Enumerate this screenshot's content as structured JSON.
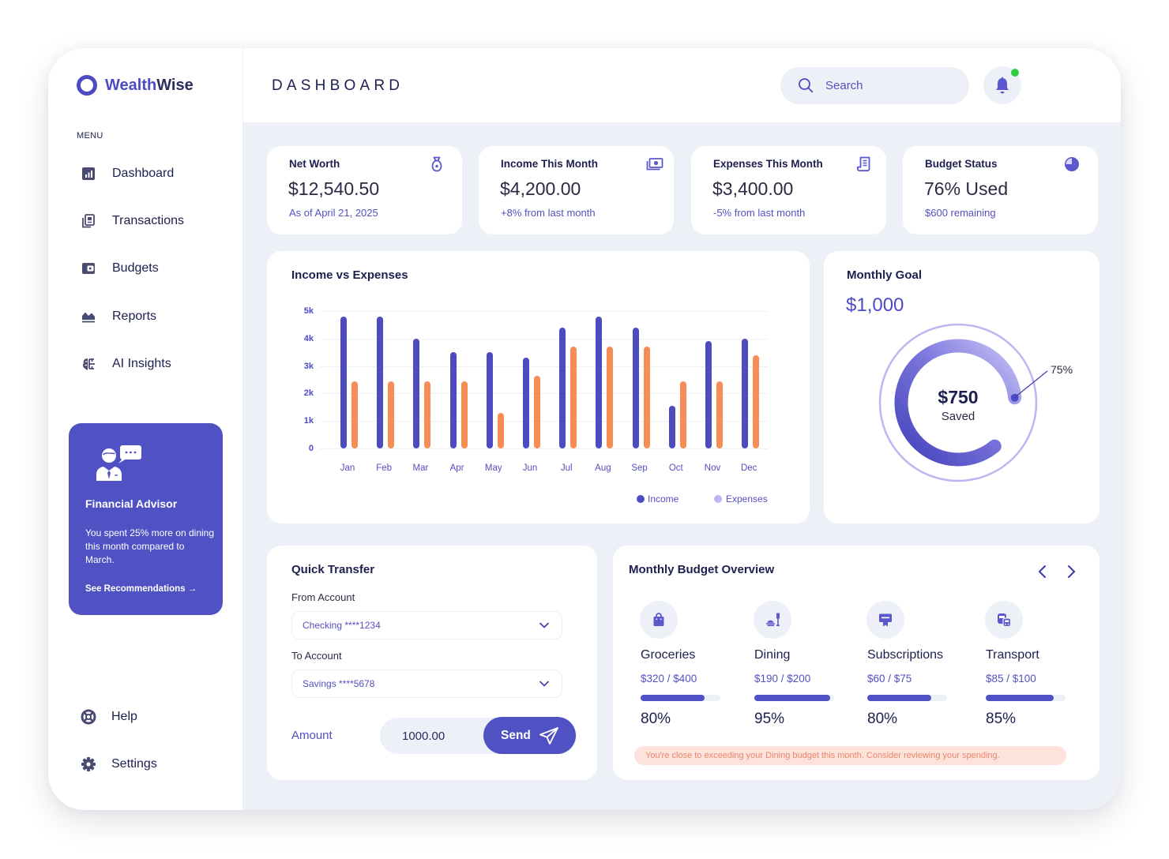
{
  "brand": {
    "name_part1": "Wealth",
    "name_part2": "Wise"
  },
  "sidebar": {
    "menu_label": "MENU",
    "items": [
      {
        "label": "Dashboard",
        "icon": "dashboard-icon"
      },
      {
        "label": "Transactions",
        "icon": "transactions-icon"
      },
      {
        "label": "Budgets",
        "icon": "wallet-icon"
      },
      {
        "label": "Reports",
        "icon": "reports-icon"
      },
      {
        "label": "AI Insights",
        "icon": "brain-icon"
      }
    ],
    "advisor": {
      "title": "Financial Advisor",
      "text": "You spent 25% more on dining this month compared to March.",
      "link": "See Recommendations →",
      "icon": "advisor-icon"
    },
    "footer_items": [
      {
        "label": "Help",
        "icon": "lifebuoy-icon"
      },
      {
        "label": "Settings",
        "icon": "gear-icon"
      }
    ]
  },
  "header": {
    "title": "DASHBOARD",
    "search_placeholder": "Search",
    "notification_dot_color": "#2ecc40"
  },
  "stats": [
    {
      "label": "Net Worth",
      "value": "$12,540.50",
      "sub": "As of April 21, 2025",
      "icon": "money-bag-icon"
    },
    {
      "label": "Income This Month",
      "value": "$4,200.00",
      "sub": "+8% from last month",
      "icon": "banknote-icon"
    },
    {
      "label": "Expenses This Month",
      "value": "$3,400.00",
      "sub": "-5% from last month",
      "icon": "receipt-icon"
    },
    {
      "label": "Budget Status",
      "value": "76% Used",
      "sub": "$600 remaining",
      "icon": "pie-chart-icon"
    }
  ],
  "income_chart": {
    "title": "Income vs Expenses",
    "legend": [
      {
        "label": "Income",
        "color": "#4d4bc0"
      },
      {
        "label": "Expenses",
        "color": "#b9b6f2"
      }
    ]
  },
  "monthly_goal": {
    "title": "Monthly Goal",
    "goal": "$1,000",
    "saved_amount": "$750",
    "saved_label": "Saved",
    "percent_label": "75%"
  },
  "quick_transfer": {
    "title": "Quick Transfer",
    "from_label": "From Account",
    "from_value": "Checking ****1234",
    "to_label": "To Account",
    "to_value": "Savings ****5678",
    "amount_label": "Amount",
    "amount_value": "1000.00",
    "send_label": "Send"
  },
  "budget_overview": {
    "title": "Monthly Budget Overview",
    "categories": [
      {
        "name": "Groceries",
        "amount": "$320 / $400",
        "percent": "80%",
        "progress": 80,
        "icon": "shopping-bag-icon"
      },
      {
        "name": "Dining",
        "amount": "$190 / $200",
        "percent": "95%",
        "progress": 95,
        "icon": "dining-icon"
      },
      {
        "name": "Subscriptions",
        "amount": "$60 / $75",
        "percent": "80%",
        "progress": 80,
        "icon": "subscription-icon"
      },
      {
        "name": "Transport",
        "amount": "$85 / $100",
        "percent": "85%",
        "progress": 85,
        "icon": "transport-icon"
      }
    ],
    "alert": "You're close to exceeding your Dining budget this month. Consider reviewing your spending."
  },
  "colors": {
    "primary": "#5052c4",
    "income": "#4d4bc0",
    "expenses": "#f58d55",
    "background": "#eef0f8",
    "text_dark": "#1d1f4f",
    "text_accent": "#5550c0",
    "alert_bg": "#fde3dc",
    "alert_text": "#e8876a"
  },
  "chart_data": {
    "type": "bar",
    "title": "Income vs Expenses",
    "categories": [
      "Jan",
      "Feb",
      "Mar",
      "Apr",
      "May",
      "Jun",
      "Jul",
      "Aug",
      "Sep",
      "Oct",
      "Nov",
      "Dec"
    ],
    "series": [
      {
        "name": "Income",
        "color": "#4d4bc0",
        "values": [
          4800,
          4800,
          4000,
          3500,
          3500,
          3300,
          4400,
          4800,
          4400,
          1550,
          3900,
          4000
        ]
      },
      {
        "name": "Expenses",
        "color": "#f58d55",
        "values": [
          2450,
          2450,
          2450,
          2450,
          1300,
          2650,
          3700,
          3700,
          3700,
          2450,
          2450,
          3400
        ]
      }
    ],
    "yticks": [
      "0",
      "1k",
      "2k",
      "3k",
      "4k",
      "5k"
    ],
    "ylim": [
      0,
      5000
    ],
    "xlabel": "",
    "ylabel": "",
    "grid": true,
    "legend_position": "bottom-right"
  }
}
